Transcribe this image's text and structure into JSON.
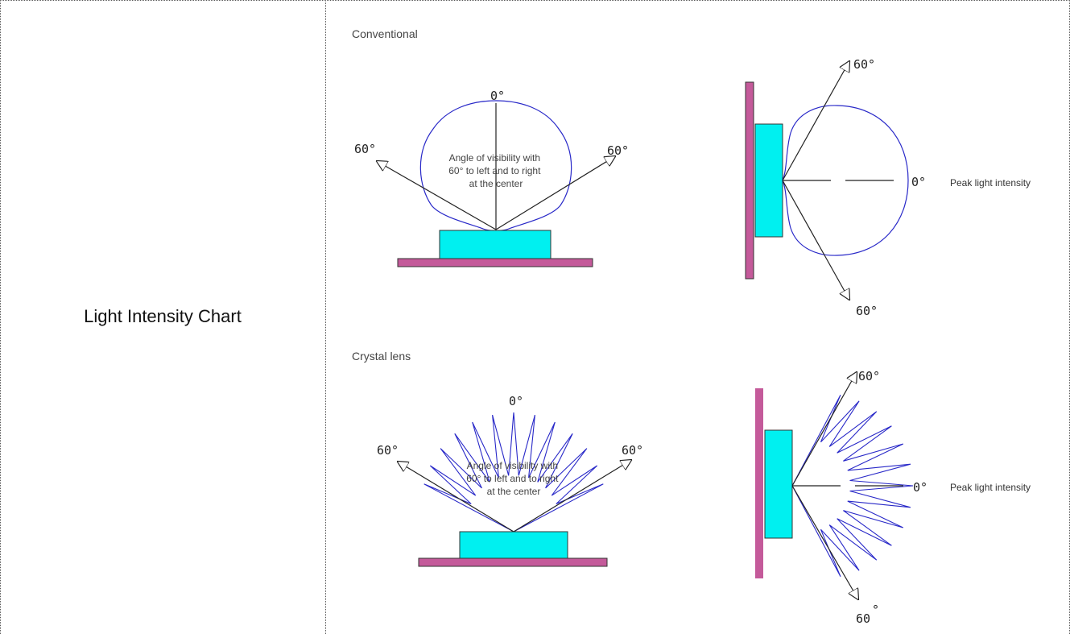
{
  "row": {
    "label": "Light Intensity Chart"
  },
  "diagram": {
    "conventional": {
      "caption": "Conventional",
      "front": {
        "top_angle": "0°",
        "left_angle": "60°",
        "right_angle": "60°",
        "note_lines": [
          "Angle of visibility with",
          "60° to left and to right",
          "at the center"
        ]
      },
      "side": {
        "top_angle": "60°",
        "mid_angle": "0°",
        "bottom_angle": "60°",
        "peak_label": "Peak light intensity"
      }
    },
    "crystal": {
      "caption": "Crystal lens",
      "front": {
        "top_angle": "0°",
        "left_angle": "60°",
        "right_angle": "60°",
        "note_lines": [
          "Angle of visibility with",
          "60° to left and to right",
          "at the center"
        ]
      },
      "side": {
        "top_angle": "60°",
        "mid_angle": "0°",
        "bottom_angle": "60",
        "bottom_angle_mark": "°",
        "peak_label": "Peak light intensity"
      }
    },
    "colors": {
      "board": "#c45a9a",
      "board_stroke": "#333333",
      "led": "#00f0f0",
      "curve": "#2828c8",
      "line": "#222222"
    }
  }
}
